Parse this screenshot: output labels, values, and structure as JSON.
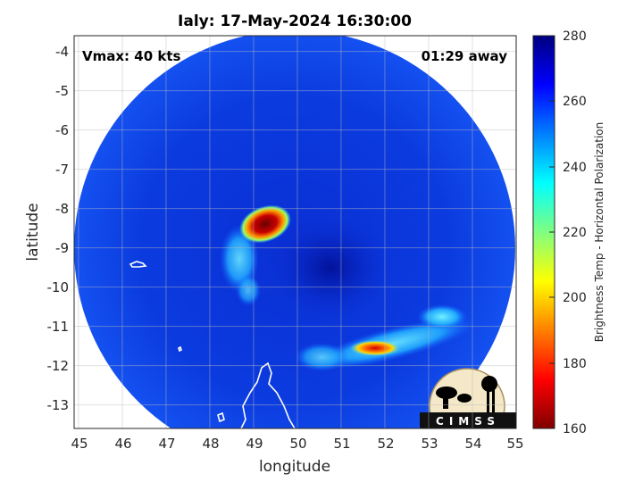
{
  "chart_data": {
    "type": "heatmap",
    "title": "Ialy: 17-May-2024 16:30:00",
    "xlabel": "longitude",
    "ylabel": "latitude",
    "xlim": [
      44.9,
      55.0
    ],
    "ylim": [
      -13.6,
      -3.6
    ],
    "xticks": [
      "45",
      "46",
      "47",
      "48",
      "49",
      "50",
      "51",
      "52",
      "53",
      "54",
      "55"
    ],
    "yticks": [
      "-4",
      "-5",
      "-6",
      "-7",
      "-8",
      "-9",
      "-10",
      "-11",
      "-12",
      "-13"
    ],
    "annotations": {
      "vmax": "Vmax: 40 kts",
      "time_away": "01:29 away"
    },
    "colorbar": {
      "label": "Brightness Temp - Horizontal Polarization",
      "ticks": [
        "280",
        "260",
        "240",
        "220",
        "200",
        "180",
        "160"
      ],
      "range": [
        160,
        280
      ],
      "colormap": "jet"
    },
    "grid": true,
    "swath": {
      "center_lon": 49.9,
      "center_lat": -8.4,
      "background_tb": 262
    },
    "features": [
      {
        "name": "convective core",
        "lon": 49.3,
        "lat": -8.5,
        "tb": 168
      },
      {
        "name": "inner rainband",
        "lon": 48.8,
        "lat": -9.4,
        "tb": 240
      },
      {
        "name": "outer rainband core",
        "lon": 51.9,
        "lat": -11.5,
        "tb": 185
      },
      {
        "name": "outer rainband",
        "lon": 52.8,
        "lat": -11.1,
        "tb": 238
      },
      {
        "name": "eye region",
        "lon": 50.4,
        "lat": -9.1,
        "tb": 272
      }
    ],
    "logo_text": "CIMSS"
  }
}
